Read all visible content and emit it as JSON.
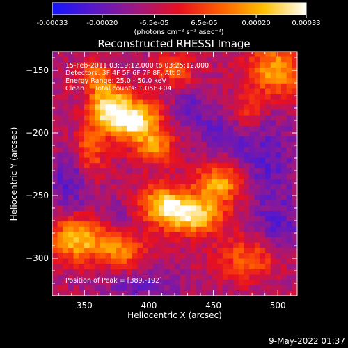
{
  "chart_data": {
    "type": "heatmap",
    "title": "Reconstructed RHESSI Image",
    "xlabel": "Heliocentric X (arcsec)",
    "ylabel": "Heliocentric Y (arcsec)",
    "xlim": [
      325,
      515
    ],
    "ylim": [
      -330,
      -135
    ],
    "x_ticks": [
      350,
      400,
      450,
      500
    ],
    "y_ticks": [
      -150,
      -200,
      -250,
      -300
    ],
    "grid": false,
    "colorbar": {
      "position": "top",
      "range": [
        -0.00033,
        0.00033
      ],
      "tick_values": [
        -0.00033,
        -0.0002,
        -6.5e-05,
        6.5e-05,
        0.0002,
        0.00033
      ],
      "tick_labels": [
        "-0.00033",
        "-0.00020",
        "-6.5e-05",
        "6.5e-05",
        "0.00020",
        "0.00033"
      ],
      "unit_label": "(photons cm⁻² s⁻¹ asec⁻²)",
      "colors": [
        "#1515ff",
        "#5a18c8",
        "#a01880",
        "#e81020",
        "#ff6000",
        "#ffc000",
        "#ffffff"
      ]
    },
    "annotations": [
      "15-Feb-2011 03:19:12.000 to 03:25:12.000",
      "Detectors: 3F 4F 5F 6F 7F 8F, Att 0",
      "Energy Range: 25.0 - 50.0 keV",
      "Clean     Total counts: 1.05E+04"
    ],
    "peak_label": "Position of Peak = [389,-192]",
    "peak": {
      "x": 389,
      "y": -192
    },
    "emission_blobs": [
      {
        "x": 388,
        "y": -190,
        "sx": 14,
        "sy": 12,
        "amp": 1.0
      },
      {
        "x": 368,
        "y": -178,
        "sx": 10,
        "sy": 12,
        "amp": 0.8
      },
      {
        "x": 405,
        "y": -212,
        "sx": 10,
        "sy": 9,
        "amp": 0.55
      },
      {
        "x": 432,
        "y": -265,
        "sx": 18,
        "sy": 10,
        "amp": 0.95
      },
      {
        "x": 455,
        "y": -240,
        "sx": 14,
        "sy": 10,
        "amp": 0.7
      },
      {
        "x": 410,
        "y": -255,
        "sx": 12,
        "sy": 10,
        "amp": 0.6
      },
      {
        "x": 345,
        "y": -285,
        "sx": 16,
        "sy": 12,
        "amp": 0.75
      },
      {
        "x": 380,
        "y": -295,
        "sx": 12,
        "sy": 10,
        "amp": 0.55
      },
      {
        "x": 498,
        "y": -150,
        "sx": 15,
        "sy": 15,
        "amp": 0.65
      },
      {
        "x": 420,
        "y": -150,
        "sx": 10,
        "sy": 9,
        "amp": 0.45
      },
      {
        "x": 358,
        "y": -155,
        "sx": 9,
        "sy": 8,
        "amp": 0.45
      },
      {
        "x": 480,
        "y": -300,
        "sx": 18,
        "sy": 12,
        "amp": 0.5
      },
      {
        "x": 355,
        "y": -215,
        "sx": 8,
        "sy": 16,
        "amp": 0.45
      },
      {
        "x": 475,
        "y": -185,
        "sx": 10,
        "sy": 10,
        "amp": 0.35
      }
    ],
    "background_blobs": [
      {
        "x": 340,
        "y": -240,
        "sx": 12,
        "sy": 14,
        "amp": 0.8
      },
      {
        "x": 490,
        "y": -220,
        "sx": 18,
        "sy": 25,
        "amp": 0.7
      },
      {
        "x": 455,
        "y": -195,
        "sx": 14,
        "sy": 12,
        "amp": 0.6
      },
      {
        "x": 430,
        "y": -180,
        "sx": 10,
        "sy": 10,
        "amp": 0.55
      },
      {
        "x": 500,
        "y": -280,
        "sx": 14,
        "sy": 20,
        "amp": 0.7
      },
      {
        "x": 395,
        "y": -322,
        "sx": 22,
        "sy": 10,
        "amp": 0.55
      },
      {
        "x": 375,
        "y": -265,
        "sx": 10,
        "sy": 8,
        "amp": 0.4
      }
    ]
  },
  "footer": {
    "date": "9-May-2022 01:37"
  }
}
